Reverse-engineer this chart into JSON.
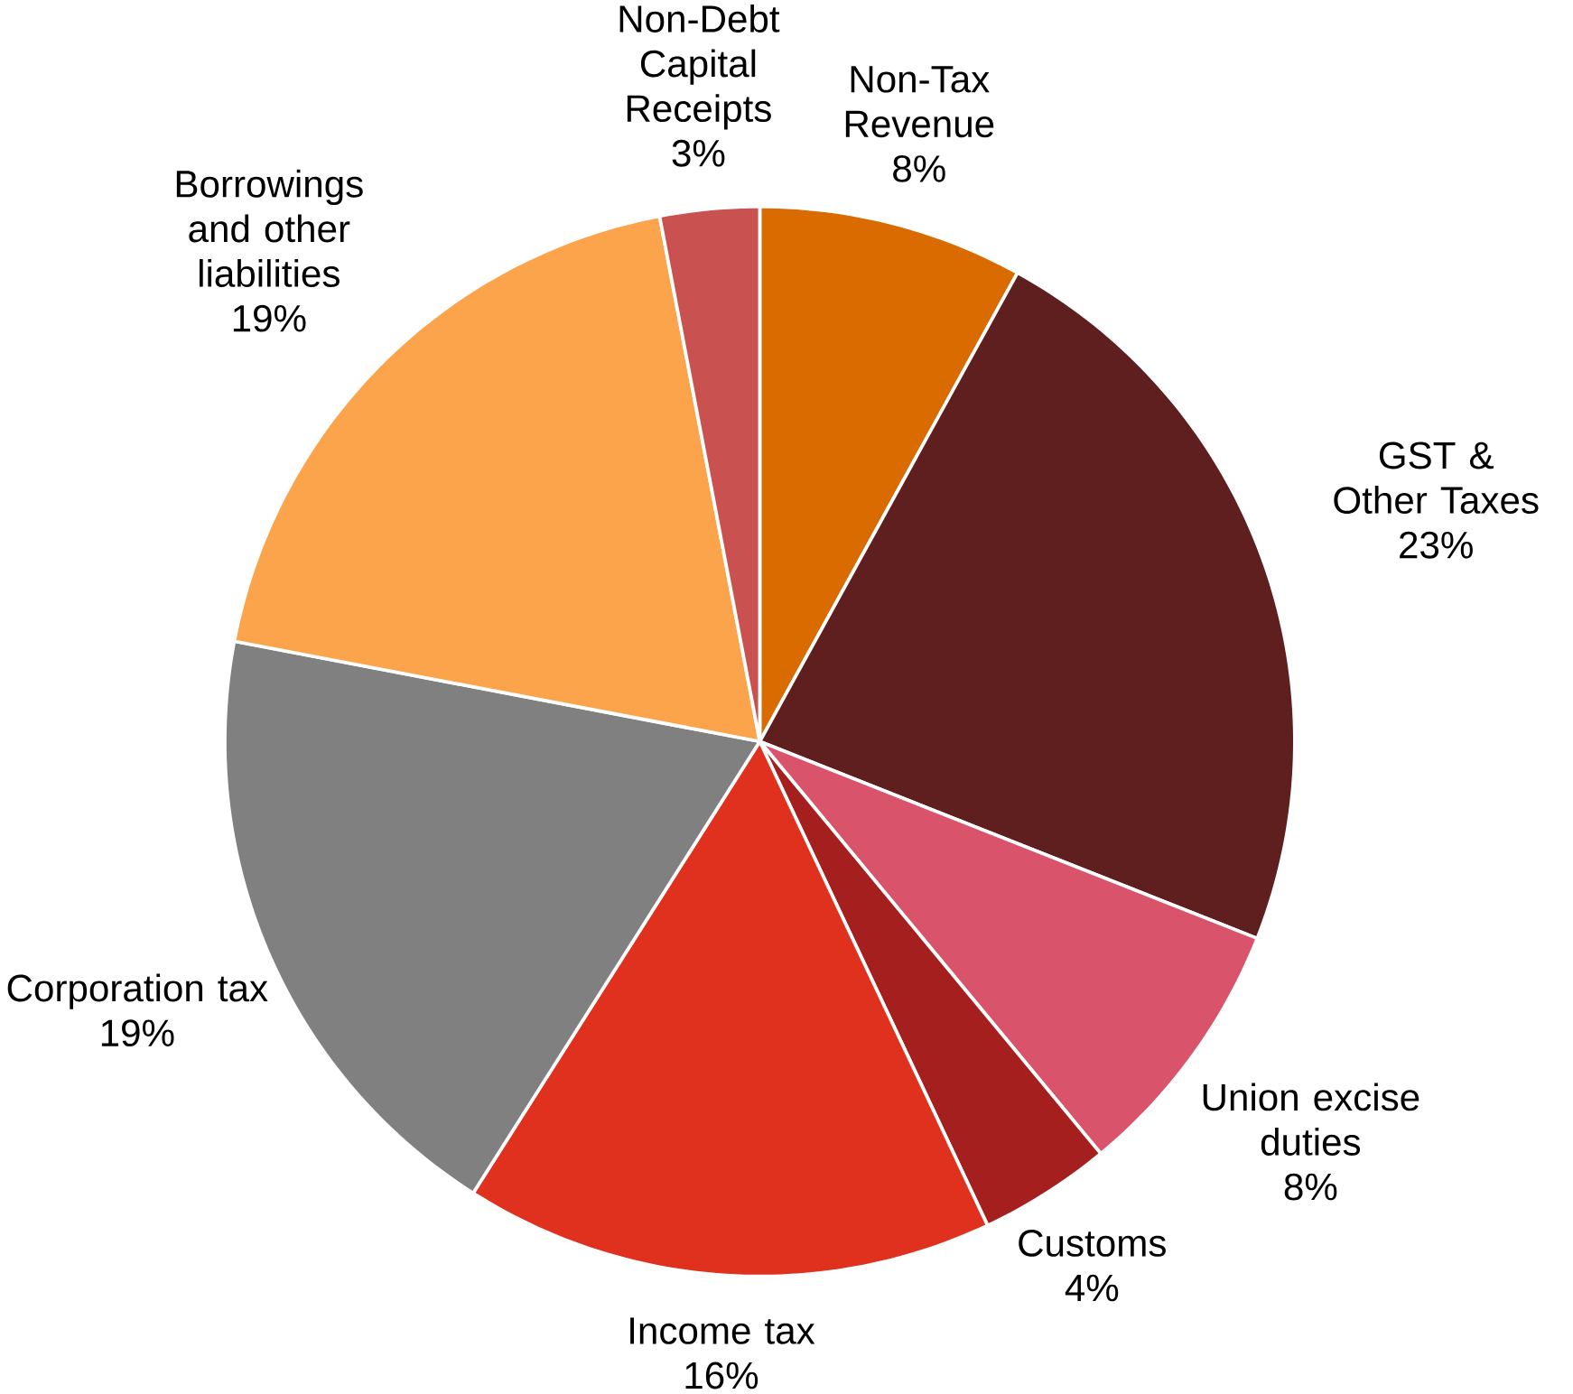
{
  "chart_data": {
    "type": "pie",
    "categories": [
      "Non-Tax Revenue",
      "GST & Other Taxes",
      "Union excise duties",
      "Customs",
      "Income tax",
      "Corporation tax",
      "Borrowings and other liabilities",
      "Non-Debt Capital Receipts"
    ],
    "values": [
      8,
      23,
      8,
      4,
      16,
      19,
      19,
      3
    ],
    "value_labels": [
      "8%",
      "23%",
      "8%",
      "4%",
      "16%",
      "19%",
      "19%",
      "3%"
    ],
    "colors": [
      "#d96b00",
      "#5e1f1e",
      "#d9546a",
      "#a51f1f",
      "#e0301e",
      "#808080",
      "#fca44c",
      "#c9514f"
    ]
  }
}
